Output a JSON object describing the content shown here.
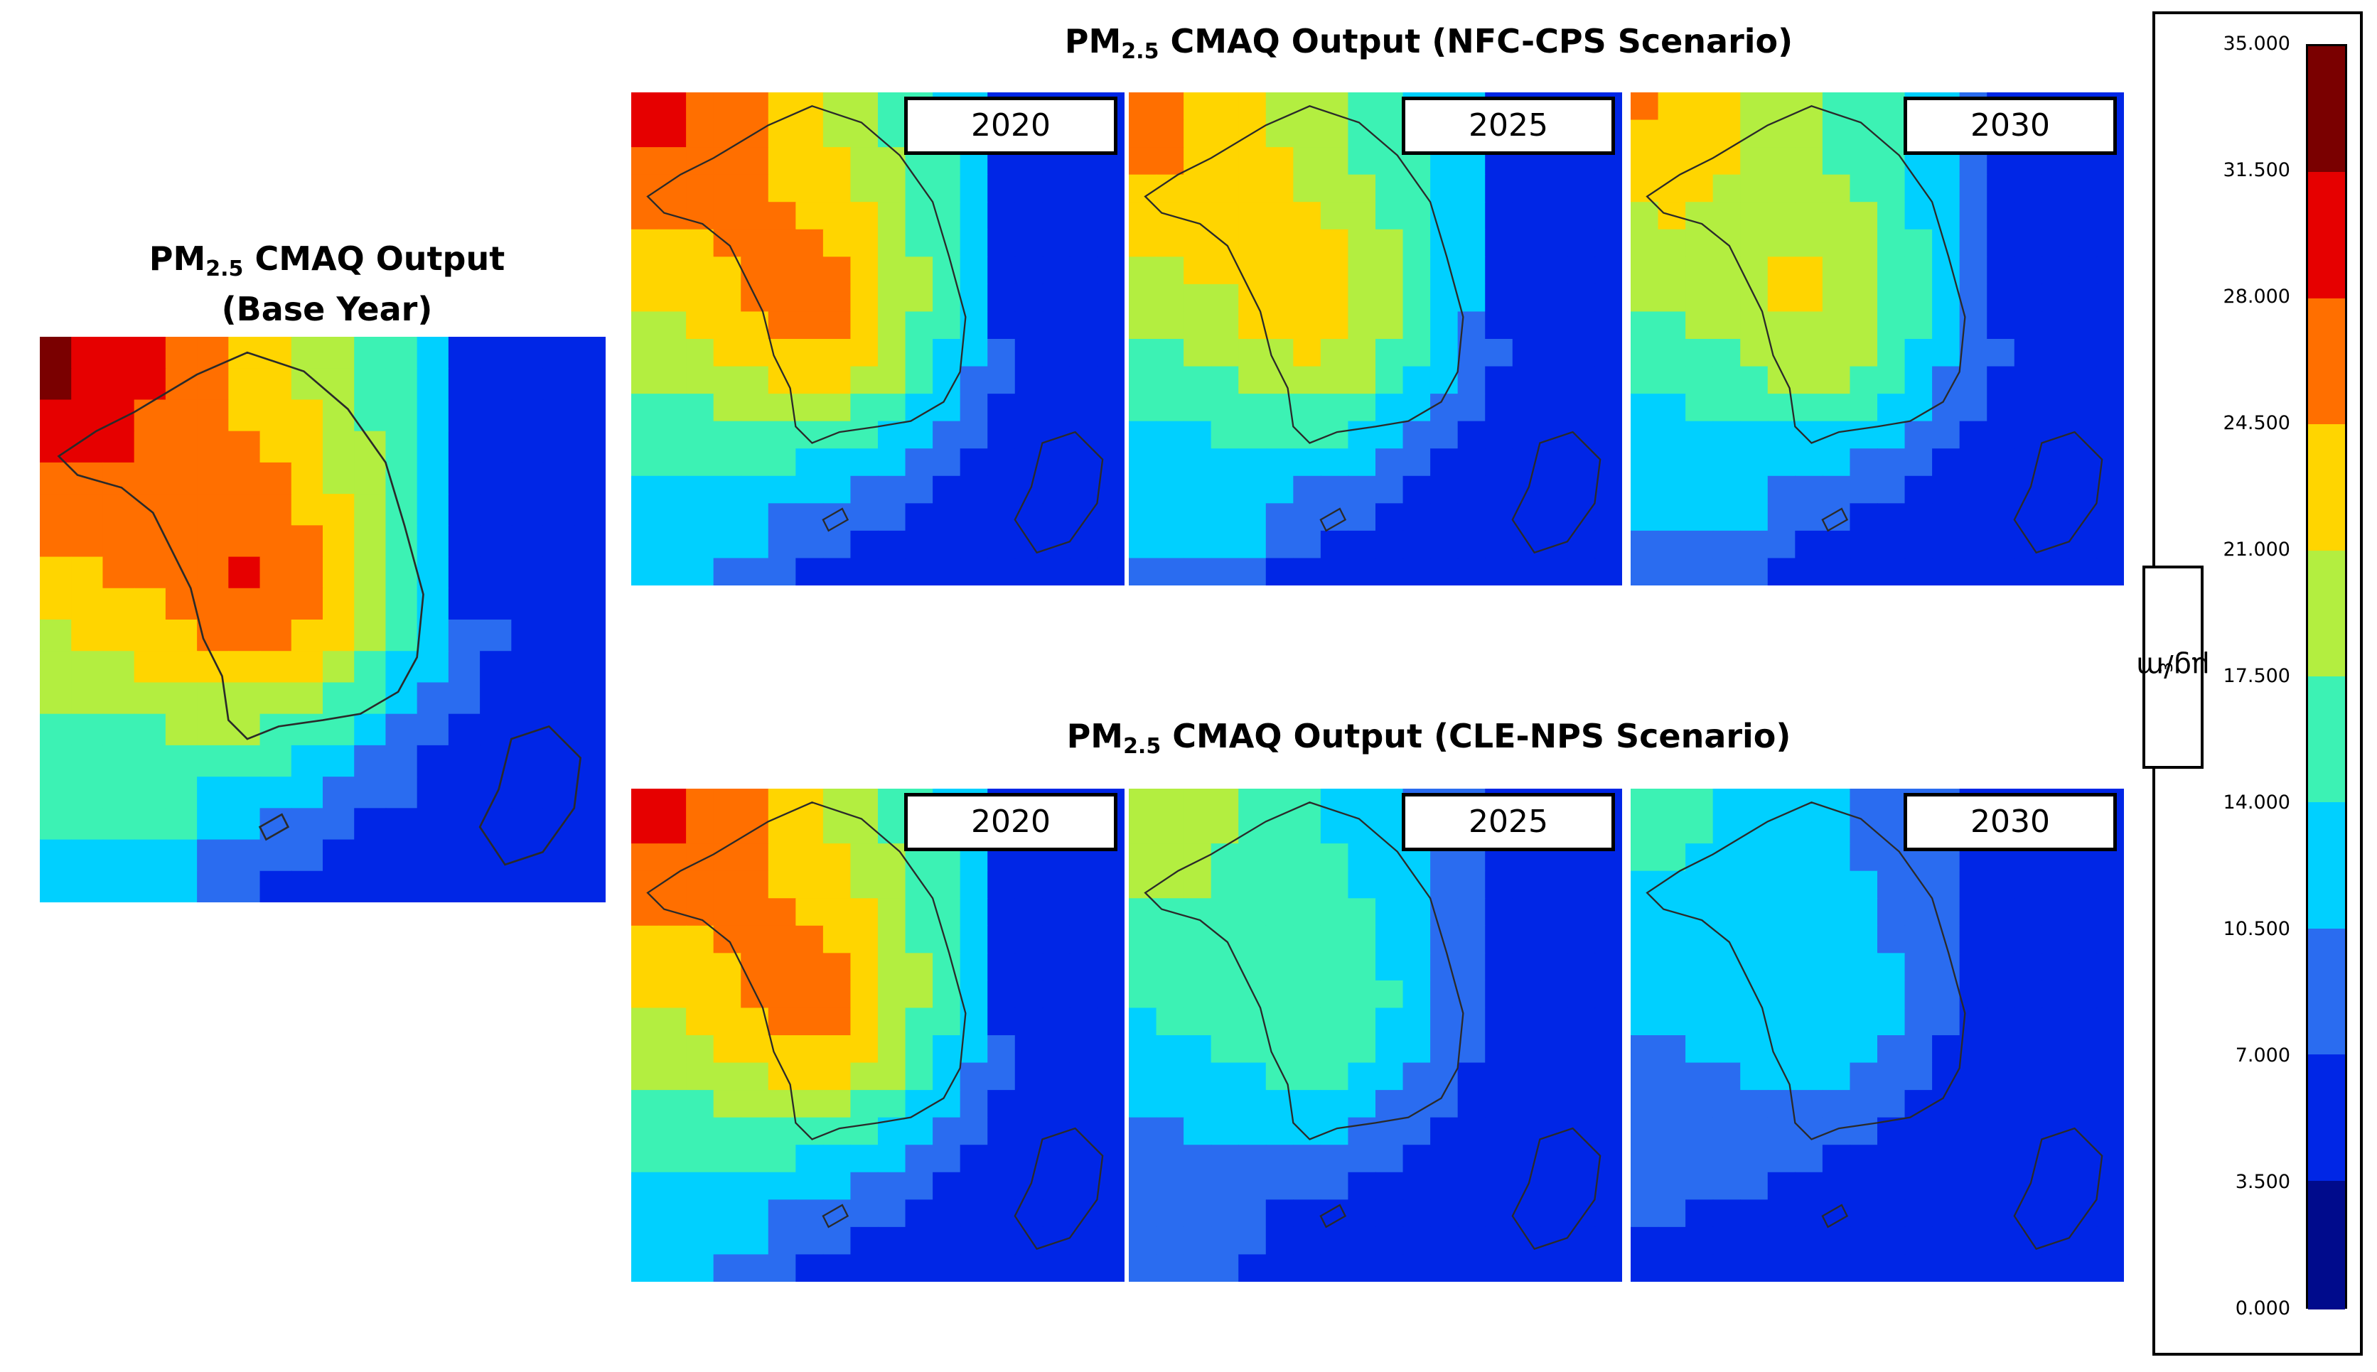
{
  "titles": {
    "base": {
      "pm": "PM",
      "sub": "2.5",
      "rest": " CMAQ Output",
      "line2": "(Base Year)"
    },
    "nfc": {
      "pm": "PM",
      "sub": "2.5",
      "rest": " CMAQ Output (NFC-CPS Scenario)"
    },
    "cle": {
      "pm": "PM",
      "sub": "2.5",
      "rest": " CMAQ Output (CLE-NPS Scenario)"
    }
  },
  "panels": {
    "base": {
      "scenario": "Base Year",
      "year_label": "",
      "intensity": 1.0
    },
    "nfc_2020": {
      "scenario": "NFC-CPS",
      "year_label": "2020",
      "intensity": 0.92
    },
    "nfc_2025": {
      "scenario": "NFC-CPS",
      "year_label": "2025",
      "intensity": 0.82
    },
    "nfc_2030": {
      "scenario": "NFC-CPS",
      "year_label": "2030",
      "intensity": 0.76
    },
    "cle_2020": {
      "scenario": "CLE-NPS",
      "year_label": "2020",
      "intensity": 0.92
    },
    "cle_2025": {
      "scenario": "CLE-NPS",
      "year_label": "2025",
      "intensity": 0.62
    },
    "cle_2030": {
      "scenario": "CLE-NPS",
      "year_label": "2030",
      "intensity": 0.48
    }
  },
  "legend": {
    "unit_main": "µg/m",
    "unit_sup": "3",
    "ticks": [
      "35.000",
      "31.500",
      "28.000",
      "24.500",
      "21.000",
      "17.500",
      "14.000",
      "10.500",
      "7.000",
      "3.500",
      "0.000"
    ],
    "colors": [
      "#7a0000",
      "#e60000",
      "#ff6f00",
      "#ffd500",
      "#b3ee40",
      "#3cf2b4",
      "#00d0ff",
      "#2a6cf0",
      "#0026e6",
      "#000b8c"
    ]
  }
}
